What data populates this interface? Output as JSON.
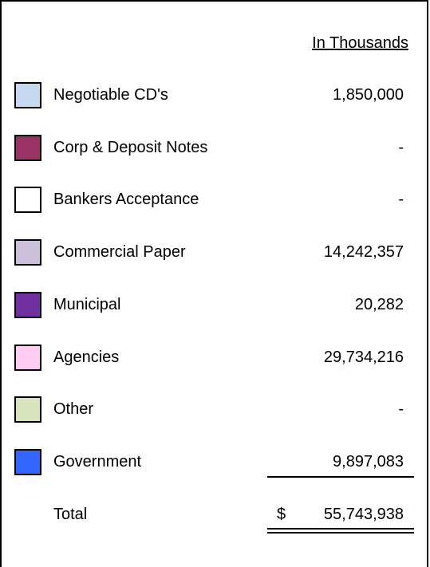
{
  "header": "In Thousands",
  "rows": [
    {
      "label": "Negotiable CD's",
      "value": "1,850,000",
      "color": "#c6d9f1"
    },
    {
      "label": "Corp & Deposit Notes",
      "value": "-",
      "color": "#993366"
    },
    {
      "label": "Bankers Acceptance",
      "value": "-",
      "color": "#ffffff"
    },
    {
      "label": "Commercial Paper",
      "value": "14,242,357",
      "color": "#ccc0da"
    },
    {
      "label": "Municipal",
      "value": "20,282",
      "color": "#7030a0"
    },
    {
      "label": "Agencies",
      "value": "29,734,216",
      "color": "#ffccf2"
    },
    {
      "label": "Other",
      "value": "-",
      "color": "#d8e4bc"
    },
    {
      "label": "Government",
      "value": "9,897,083",
      "color": "#3366ff"
    }
  ],
  "total": {
    "label": "Total",
    "currency": "$",
    "value": "55,743,938"
  }
}
